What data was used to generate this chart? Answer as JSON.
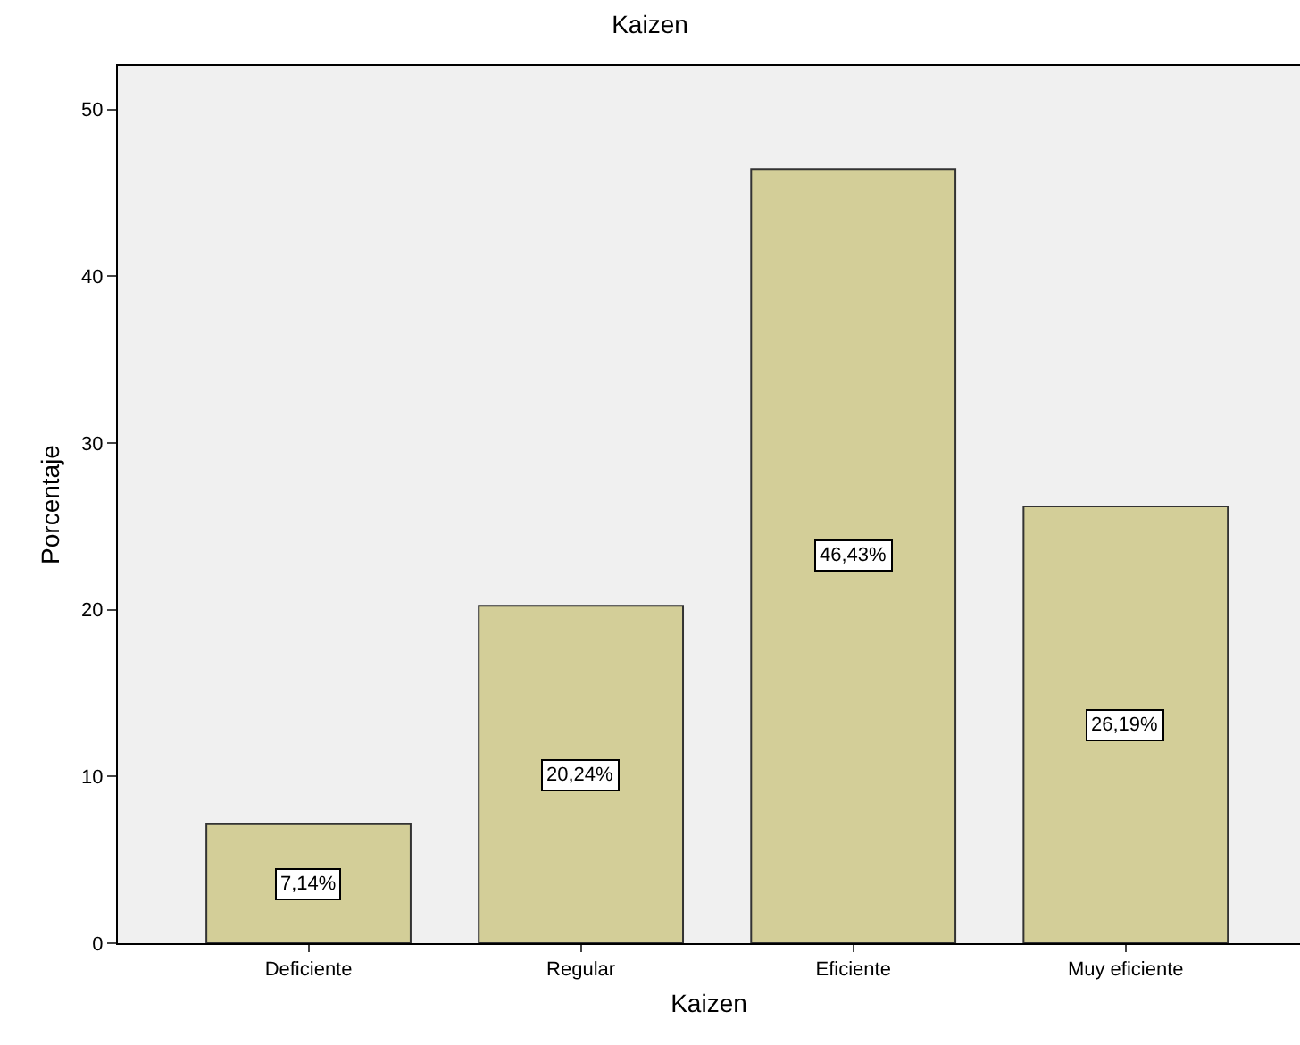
{
  "chart_data": {
    "type": "bar",
    "title": "Kaizen",
    "xlabel": "Kaizen",
    "ylabel": "Porcentaje",
    "categories": [
      "Deficiente",
      "Regular",
      "Eficiente",
      "Muy eficiente"
    ],
    "values": [
      7.14,
      20.24,
      46.43,
      26.19
    ],
    "value_labels": [
      "7,14%",
      "20,24%",
      "46,43%",
      "26,19%"
    ],
    "color": "#d3ce98",
    "ylim": [
      0,
      52.6
    ],
    "yticks": [
      0,
      10,
      20,
      30,
      40,
      50
    ],
    "grid": false
  }
}
